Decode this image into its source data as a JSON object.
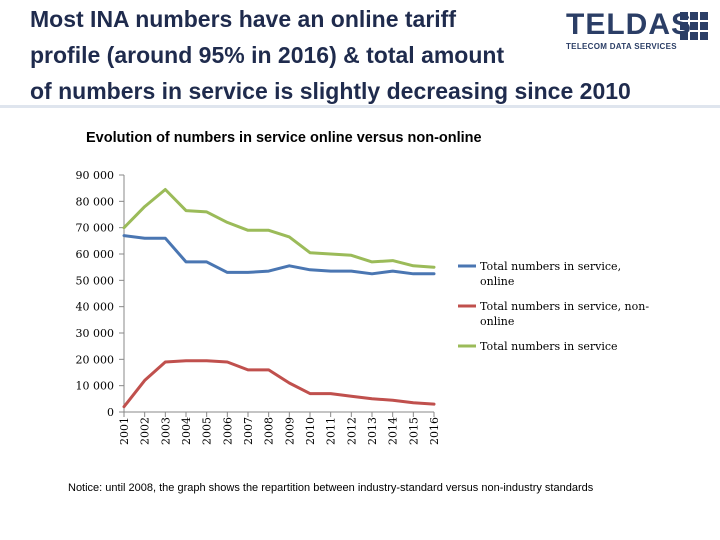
{
  "header": {
    "title_lines": [
      "Most INA numbers have an online tariff",
      "profile (around 95%  in 2016)  & total amount",
      "of numbers in service is slightly decreasing since 2010"
    ],
    "logo_text": "TELDAS",
    "logo_subtitle": "TELECOM DATA SERVICES"
  },
  "chart_title": "Evolution of numbers in service online versus non-online",
  "notice": "Notice: until 2008, the graph shows the repartition between industry-standard versus non-industry standards",
  "chart_data": {
    "type": "line",
    "title": "Evolution of numbers in service online versus non-online",
    "xlabel": "",
    "ylabel": "",
    "ylim": [
      0,
      90000
    ],
    "ytick_values": [
      0,
      10000,
      20000,
      30000,
      40000,
      50000,
      60000,
      70000,
      80000,
      90000
    ],
    "ytick_labels": [
      "0",
      "10 000",
      "20 000",
      "30 000",
      "40 000",
      "50 000",
      "60 000",
      "70 000",
      "80 000",
      "90 000"
    ],
    "grid": false,
    "legend_position": "right",
    "categories": [
      "2001",
      "2002",
      "2003",
      "2004",
      "2005",
      "2006",
      "2007",
      "2008",
      "2009",
      "2010",
      "2011",
      "2012",
      "2013",
      "2014",
      "2015",
      "2016"
    ],
    "series": [
      {
        "name": "Total numbers in service, online",
        "color": "#4a76b2",
        "values": [
          67000,
          66000,
          66000,
          57000,
          57000,
          53000,
          53000,
          53500,
          55500,
          54000,
          53500,
          53500,
          52500,
          53500,
          52500,
          52500
        ]
      },
      {
        "name": "Total numbers in service, non-online",
        "color": "#c0504d",
        "values": [
          2000,
          12000,
          19000,
          19500,
          19500,
          19000,
          16000,
          16000,
          11000,
          7000,
          7000,
          6000,
          5000,
          4500,
          3500,
          3000
        ]
      },
      {
        "name": "Total numbers in service",
        "color": "#9bbb59",
        "values": [
          70000,
          78000,
          84500,
          76500,
          76000,
          72000,
          69000,
          69000,
          66500,
          60500,
          60000,
          59500,
          57000,
          57500,
          55500,
          55000
        ]
      }
    ]
  }
}
